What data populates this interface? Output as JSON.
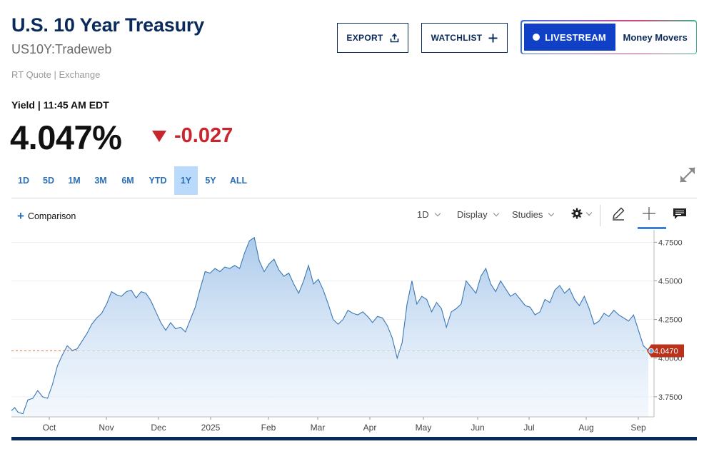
{
  "header": {
    "title": "U.S. 10 Year Treasury",
    "symbol": "US10Y:Tradeweb",
    "quote_source": "RT Quote | Exchange"
  },
  "actions": {
    "export_label": "EXPORT",
    "watchlist_label": "WATCHLIST",
    "livestream_label": "LIVESTREAM",
    "money_movers_label": "Money Movers"
  },
  "quote": {
    "yield_label": "Yield | 11:45 AM EDT",
    "price": "4.047%",
    "change": "-0.027"
  },
  "ranges": [
    "1D",
    "5D",
    "1M",
    "3M",
    "6M",
    "YTD",
    "1Y",
    "5Y",
    "ALL"
  ],
  "active_range": "1Y",
  "toolbar": {
    "comparison_label": "Comparison",
    "interval_label": "1D",
    "display_label": "Display",
    "studies_label": "Studies"
  },
  "icons": {
    "export": "upload-icon",
    "watchlist": "plus-icon",
    "expand": "expand-arrows-icon",
    "settings": "gear-icon",
    "draw": "pencil-icon",
    "crosshair": "crosshair-icon",
    "comment": "comment-icon"
  },
  "colors": {
    "brand_navy": "#0b2a5c",
    "livestream_blue": "#1040c6",
    "down_red": "#c9252c",
    "line_blue": "#3a78b5",
    "active_range_bg": "#b9dafb",
    "last_price_tag": "#b8321c"
  },
  "chart_data": {
    "type": "area",
    "series_name": "",
    "x_labels": [
      "Oct",
      "Nov",
      "Dec",
      "2025",
      "Feb",
      "Mar",
      "Apr",
      "May",
      "Jun",
      "Jul",
      "Aug",
      "Sep"
    ],
    "y_ticks": [
      "4.7500",
      "4.5000",
      "4.2500",
      "4.0000",
      "3.7500"
    ],
    "ylim": [
      3.62,
      4.83
    ],
    "last_value": 4.047,
    "last_value_label": "4.0470",
    "reference_line": 4.047,
    "points": [
      [
        0,
        3.66
      ],
      [
        2,
        3.68
      ],
      [
        4,
        3.65
      ],
      [
        7,
        3.64
      ],
      [
        10,
        3.73
      ],
      [
        13,
        3.74
      ],
      [
        16,
        3.79
      ],
      [
        19,
        3.75
      ],
      [
        22,
        3.74
      ],
      [
        25,
        3.83
      ],
      [
        28,
        3.95
      ],
      [
        31,
        4.02
      ],
      [
        34,
        4.08
      ],
      [
        37,
        4.05
      ],
      [
        40,
        4.06
      ],
      [
        43,
        4.11
      ],
      [
        46,
        4.16
      ],
      [
        49,
        4.22
      ],
      [
        52,
        4.26
      ],
      [
        55,
        4.29
      ],
      [
        58,
        4.35
      ],
      [
        61,
        4.43
      ],
      [
        64,
        4.41
      ],
      [
        67,
        4.4
      ],
      [
        70,
        4.43
      ],
      [
        73,
        4.44
      ],
      [
        76,
        4.39
      ],
      [
        79,
        4.43
      ],
      [
        82,
        4.42
      ],
      [
        85,
        4.37
      ],
      [
        88,
        4.3
      ],
      [
        91,
        4.23
      ],
      [
        94,
        4.18
      ],
      [
        97,
        4.23
      ],
      [
        100,
        4.19
      ],
      [
        103,
        4.2
      ],
      [
        106,
        4.17
      ],
      [
        109,
        4.25
      ],
      [
        112,
        4.33
      ],
      [
        115,
        4.45
      ],
      [
        118,
        4.56
      ],
      [
        121,
        4.55
      ],
      [
        124,
        4.58
      ],
      [
        127,
        4.56
      ],
      [
        130,
        4.59
      ],
      [
        133,
        4.58
      ],
      [
        136,
        4.6
      ],
      [
        139,
        4.58
      ],
      [
        142,
        4.68
      ],
      [
        145,
        4.76
      ],
      [
        148,
        4.78
      ],
      [
        151,
        4.63
      ],
      [
        154,
        4.56
      ],
      [
        157,
        4.61
      ],
      [
        160,
        4.64
      ],
      [
        163,
        4.57
      ],
      [
        166,
        4.53
      ],
      [
        169,
        4.55
      ],
      [
        172,
        4.48
      ],
      [
        175,
        4.42
      ],
      [
        178,
        4.5
      ],
      [
        181,
        4.6
      ],
      [
        184,
        4.48
      ],
      [
        187,
        4.51
      ],
      [
        190,
        4.44
      ],
      [
        193,
        4.35
      ],
      [
        196,
        4.25
      ],
      [
        199,
        4.22
      ],
      [
        202,
        4.25
      ],
      [
        205,
        4.31
      ],
      [
        208,
        4.29
      ],
      [
        211,
        4.28
      ],
      [
        214,
        4.3
      ],
      [
        217,
        4.27
      ],
      [
        220,
        4.23
      ],
      [
        223,
        4.27
      ],
      [
        226,
        4.26
      ],
      [
        229,
        4.21
      ],
      [
        232,
        4.13
      ],
      [
        235,
        4.0
      ],
      [
        238,
        4.1
      ],
      [
        241,
        4.35
      ],
      [
        244,
        4.5
      ],
      [
        247,
        4.35
      ],
      [
        250,
        4.4
      ],
      [
        253,
        4.38
      ],
      [
        256,
        4.3
      ],
      [
        259,
        4.36
      ],
      [
        262,
        4.32
      ],
      [
        265,
        4.2
      ],
      [
        268,
        4.3
      ],
      [
        271,
        4.32
      ],
      [
        274,
        4.35
      ],
      [
        277,
        4.5
      ],
      [
        280,
        4.46
      ],
      [
        283,
        4.42
      ],
      [
        286,
        4.53
      ],
      [
        289,
        4.58
      ],
      [
        292,
        4.48
      ],
      [
        295,
        4.43
      ],
      [
        298,
        4.5
      ],
      [
        301,
        4.45
      ],
      [
        304,
        4.4
      ],
      [
        307,
        4.42
      ],
      [
        310,
        4.38
      ],
      [
        313,
        4.34
      ],
      [
        316,
        4.33
      ],
      [
        319,
        4.28
      ],
      [
        322,
        4.3
      ],
      [
        325,
        4.38
      ],
      [
        328,
        4.36
      ],
      [
        331,
        4.44
      ],
      [
        334,
        4.47
      ],
      [
        337,
        4.42
      ],
      [
        340,
        4.45
      ],
      [
        343,
        4.38
      ],
      [
        346,
        4.34
      ],
      [
        349,
        4.4
      ],
      [
        352,
        4.32
      ],
      [
        355,
        4.22
      ],
      [
        358,
        4.24
      ],
      [
        361,
        4.29
      ],
      [
        364,
        4.27
      ],
      [
        367,
        4.31
      ],
      [
        370,
        4.28
      ],
      [
        373,
        4.26
      ],
      [
        376,
        4.24
      ],
      [
        379,
        4.28
      ],
      [
        382,
        4.18
      ],
      [
        385,
        4.08
      ],
      [
        388,
        4.05
      ]
    ]
  }
}
